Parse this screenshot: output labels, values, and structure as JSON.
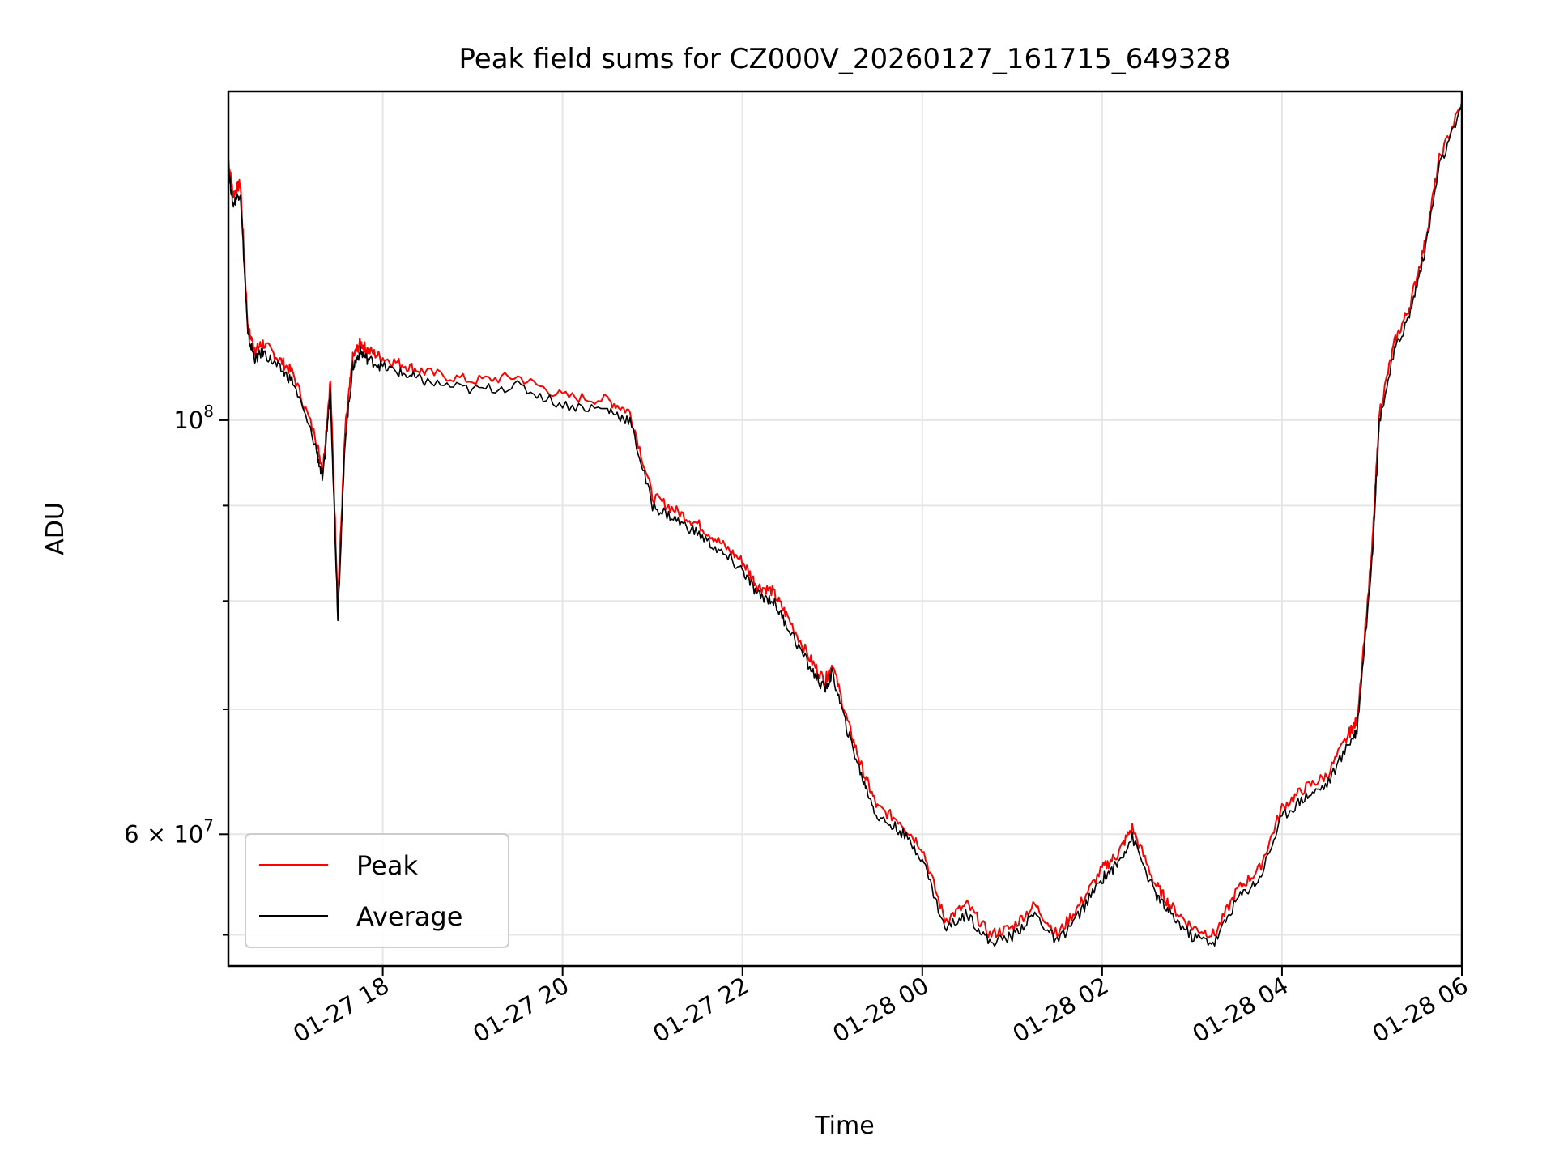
{
  "chart_data": {
    "type": "line",
    "title": "Peak field sums for CZ000V_20260127_161715_649328",
    "xlabel": "Time",
    "ylabel": "ADU",
    "yscale": "log",
    "xlim": [
      "2026-01-27 16:17",
      "2026-01-28 06:00"
    ],
    "ylim": [
      51000000,
      150000000
    ],
    "grid": true,
    "legend_position": "lower-left",
    "x_ticks": [
      "01-27 18",
      "01-27 20",
      "01-27 22",
      "01-28 00",
      "01-28 02",
      "01-28 04",
      "01-28 06"
    ],
    "y_ticks": [
      {
        "value": 100000000,
        "label_base": "10",
        "label_exp": "8"
      },
      {
        "value": 60000000,
        "label_base": "6 × 10",
        "label_exp": "7"
      }
    ],
    "y_minor_ticks": [
      53000000,
      70000000,
      80000000,
      90000000
    ],
    "x": [
      "2026-01-27 16:17",
      "2026-01-27 16:20",
      "2026-01-27 16:25",
      "2026-01-27 16:30",
      "2026-01-27 16:35",
      "2026-01-27 16:40",
      "2026-01-27 16:50",
      "2026-01-27 17:00",
      "2026-01-27 17:15",
      "2026-01-27 17:20",
      "2026-01-27 17:25",
      "2026-01-27 17:30",
      "2026-01-27 17:35",
      "2026-01-27 17:40",
      "2026-01-27 17:45",
      "2026-01-27 17:50",
      "2026-01-27 18:00",
      "2026-01-27 18:15",
      "2026-01-27 18:30",
      "2026-01-27 19:00",
      "2026-01-27 19:30",
      "2026-01-27 20:00",
      "2026-01-27 20:30",
      "2026-01-27 20:45",
      "2026-01-27 21:00",
      "2026-01-27 21:15",
      "2026-01-27 21:30",
      "2026-01-27 21:45",
      "2026-01-27 22:00",
      "2026-01-27 22:10",
      "2026-01-27 22:20",
      "2026-01-27 22:30",
      "2026-01-27 22:45",
      "2026-01-27 22:55",
      "2026-01-27 23:00",
      "2026-01-27 23:10",
      "2026-01-27 23:20",
      "2026-01-27 23:30",
      "2026-01-27 23:45",
      "2026-01-28 00:00",
      "2026-01-28 00:15",
      "2026-01-28 00:30",
      "2026-01-28 00:45",
      "2026-01-28 01:00",
      "2026-01-28 01:15",
      "2026-01-28 01:30",
      "2026-01-28 01:45",
      "2026-01-28 02:00",
      "2026-01-28 02:10",
      "2026-01-28 02:20",
      "2026-01-28 02:35",
      "2026-01-28 02:45",
      "2026-01-28 03:00",
      "2026-01-28 03:15",
      "2026-01-28 03:30",
      "2026-01-28 03:45",
      "2026-01-28 04:00",
      "2026-01-28 04:15",
      "2026-01-28 04:30",
      "2026-01-28 04:45",
      "2026-01-28 04:50",
      "2026-01-28 05:00",
      "2026-01-28 05:05",
      "2026-01-28 05:15",
      "2026-01-28 05:25",
      "2026-01-28 05:35",
      "2026-01-28 05:45",
      "2026-01-28 06:00"
    ],
    "series": [
      {
        "name": "Peak",
        "color": "#ff0000",
        "values": [
          138000000,
          132000000,
          134000000,
          112000000,
          109000000,
          110000000,
          108000000,
          106000000,
          98000000,
          94000000,
          105000000,
          80000000,
          99000000,
          108000000,
          110000000,
          109000000,
          108000000,
          107000000,
          106000000,
          105000000,
          105500000,
          103000000,
          102500000,
          101000000,
          91000000,
          89500000,
          88000000,
          86000000,
          84000000,
          81500000,
          81000000,
          78500000,
          74500000,
          72500000,
          74000000,
          69000000,
          65000000,
          62000000,
          61000000,
          59000000,
          54000000,
          55000000,
          53000000,
          53500000,
          55000000,
          53000000,
          55000000,
          57500000,
          58500000,
          60500000,
          56500000,
          55000000,
          53500000,
          53000000,
          56000000,
          57500000,
          62000000,
          63500000,
          64500000,
          68000000,
          69000000,
          85000000,
          101000000,
          110000000,
          115000000,
          124000000,
          138000000,
          148000000
        ]
      },
      {
        "name": "Average",
        "color": "#000000",
        "values": [
          136500000,
          130500000,
          132500000,
          110800000,
          107800000,
          108800000,
          106800000,
          104900000,
          97000000,
          92800000,
          103800000,
          78500000,
          97800000,
          106800000,
          108800000,
          107800000,
          106800000,
          105800000,
          104800000,
          103800000,
          104300000,
          101900000,
          101300000,
          99900000,
          90000000,
          88500000,
          87000000,
          85000000,
          83100000,
          80600000,
          80100000,
          77600000,
          73700000,
          71700000,
          73200000,
          68200000,
          64300000,
          61300000,
          60300000,
          58300000,
          53400000,
          54400000,
          52500000,
          52900000,
          54400000,
          52500000,
          54400000,
          56800000,
          57800000,
          59800000,
          55800000,
          54400000,
          52900000,
          52500000,
          55400000,
          56800000,
          61300000,
          62800000,
          63800000,
          67200000,
          68200000,
          84000000,
          100000000,
          108800000,
          113800000,
          122800000,
          136800000,
          146800000
        ]
      }
    ]
  }
}
